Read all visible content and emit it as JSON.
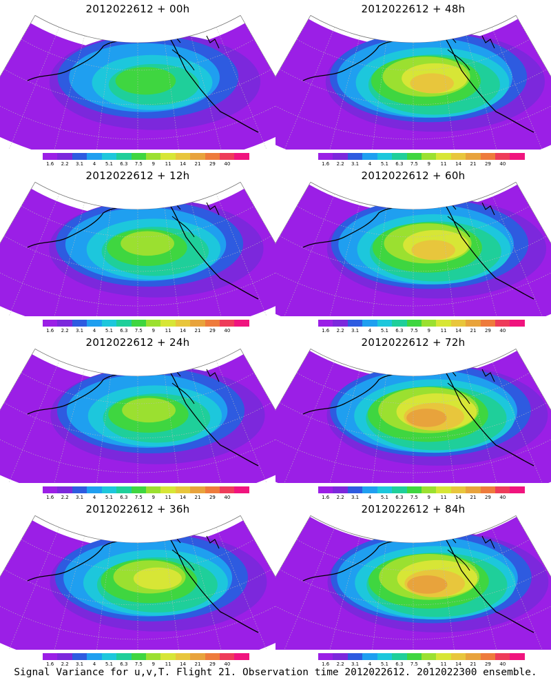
{
  "panels": [
    {
      "title": "2012022612 + 00h",
      "intensity": 0.35
    },
    {
      "title": "2012022612 + 48h",
      "intensity": 0.7
    },
    {
      "title": "2012022612 + 12h",
      "intensity": 0.45
    },
    {
      "title": "2012022612 + 60h",
      "intensity": 0.8
    },
    {
      "title": "2012022612 + 24h",
      "intensity": 0.55
    },
    {
      "title": "2012022612 + 72h",
      "intensity": 0.85
    },
    {
      "title": "2012022612 + 36h",
      "intensity": 0.6
    },
    {
      "title": "2012022612 + 84h",
      "intensity": 0.9
    }
  ],
  "colorbar": {
    "labels": [
      "1.6",
      "2.2",
      "3.1",
      "4",
      "5.1",
      "6.3",
      "7.5",
      "9",
      "11",
      "14",
      "21",
      "29",
      "40"
    ],
    "colors": [
      "#9b1fe6",
      "#7c28dc",
      "#2e5be0",
      "#1f9ff0",
      "#1dc7dc",
      "#1fcf9a",
      "#3fd640",
      "#9be030",
      "#d7e636",
      "#e8c63c",
      "#e8a33c",
      "#ee7b3c",
      "#ee3c5a",
      "#f0147e"
    ]
  },
  "footer": "Signal Variance for u,v,T. Flight 21. Observation time 2012022612. 2012022300 ensemble."
}
